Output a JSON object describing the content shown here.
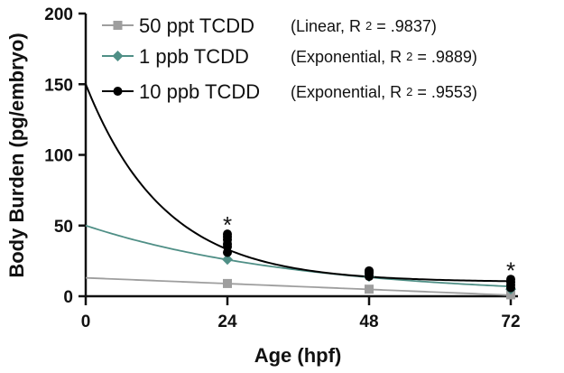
{
  "chart_data": {
    "type": "line",
    "title": "",
    "xlabel": "Age (hpf)",
    "ylabel": "Body Burden (pg/embryo)",
    "xlim": [
      0,
      72
    ],
    "ylim": [
      0,
      200
    ],
    "x_ticks": [
      "0",
      "24",
      "48",
      "72"
    ],
    "y_ticks": [
      "0",
      "50",
      "100",
      "150",
      "200"
    ],
    "series": [
      {
        "name": "50 ppt TCDD",
        "fit": "Linear",
        "r2_value": ".9837",
        "color": "#9e9e9e",
        "marker": "square",
        "points": [
          {
            "x": 24,
            "y": 9
          },
          {
            "x": 48,
            "y": 5
          },
          {
            "x": 72,
            "y": 1
          }
        ],
        "curve": {
          "kind": "linear",
          "intercept": 13,
          "slope": -0.17
        }
      },
      {
        "name": "1 ppb TCDD",
        "fit": "Exponential",
        "r2_value": ".9889",
        "color": "#4f8f86",
        "marker": "diamond",
        "points": [
          {
            "x": 24,
            "y": 26
          },
          {
            "x": 48,
            "y": 14
          },
          {
            "x": 72,
            "y": 5
          }
        ],
        "curve": {
          "kind": "exponential",
          "y0": 50,
          "plateau": 0,
          "k": 0.0275
        }
      },
      {
        "name": "10 ppb TCDD",
        "fit": "Exponential",
        "r2_value": ".9553",
        "color": "#000000",
        "marker": "circle",
        "points": [
          {
            "x": 24,
            "y": 31
          },
          {
            "x": 24,
            "y": 35
          },
          {
            "x": 24,
            "y": 37
          },
          {
            "x": 24,
            "y": 40
          },
          {
            "x": 24,
            "y": 42
          },
          {
            "x": 24,
            "y": 44
          },
          {
            "x": 48,
            "y": 14
          },
          {
            "x": 48,
            "y": 16
          },
          {
            "x": 48,
            "y": 17
          },
          {
            "x": 48,
            "y": 18
          },
          {
            "x": 72,
            "y": 6
          },
          {
            "x": 72,
            "y": 8
          },
          {
            "x": 72,
            "y": 10
          },
          {
            "x": 72,
            "y": 12
          }
        ],
        "curve": {
          "kind": "exponential",
          "y0": 150,
          "plateau": 10,
          "k": 0.075
        }
      }
    ],
    "annotations": [
      {
        "text": "*",
        "x": 24,
        "y": 51
      },
      {
        "text": "*",
        "x": 72,
        "y": 19
      }
    ],
    "legend": {
      "position": "top-right",
      "r_label": "R",
      "r_sup": "2",
      "equals": "="
    }
  }
}
